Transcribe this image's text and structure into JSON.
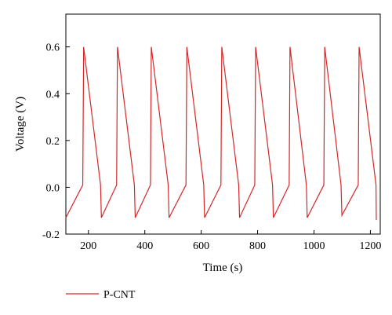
{
  "chart_data": {
    "type": "line",
    "xlabel": "Time (s)",
    "ylabel": "Voltage (V)",
    "xlim": [
      120,
      1235
    ],
    "ylim": [
      -0.2,
      0.74
    ],
    "xticks": [
      200,
      400,
      600,
      800,
      1000,
      1200
    ],
    "yticks": [
      -0.2,
      0.0,
      0.2,
      0.4,
      0.6
    ],
    "xtick_labels": [
      "200",
      "400",
      "600",
      "800",
      "1000",
      "1200"
    ],
    "ytick_labels": [
      "-0.2",
      "0.0",
      "0.2",
      "0.4",
      "0.6"
    ],
    "grid": false,
    "legend_position": "bottom-left",
    "series": [
      {
        "name": "P-CNT",
        "color": "#d62728",
        "x": [
          120,
          180,
          183,
          243,
          246,
          300,
          303,
          363,
          366,
          420,
          423,
          483,
          486,
          546,
          549,
          609,
          612,
          670,
          673,
          733,
          736,
          790,
          793,
          853,
          856,
          912,
          915,
          973,
          976,
          1035,
          1038,
          1096,
          1099,
          1157,
          1160,
          1220,
          1221
        ],
        "y": [
          -0.13,
          0.01,
          0.6,
          0.01,
          -0.13,
          0.01,
          0.6,
          0.01,
          -0.13,
          0.01,
          0.6,
          0.01,
          -0.13,
          0.01,
          0.6,
          0.01,
          -0.13,
          0.01,
          0.6,
          0.01,
          -0.13,
          0.01,
          0.6,
          0.01,
          -0.13,
          0.01,
          0.6,
          0.01,
          -0.13,
          0.01,
          0.6,
          0.01,
          -0.12,
          0.01,
          0.6,
          0.01,
          -0.14
        ]
      }
    ]
  }
}
